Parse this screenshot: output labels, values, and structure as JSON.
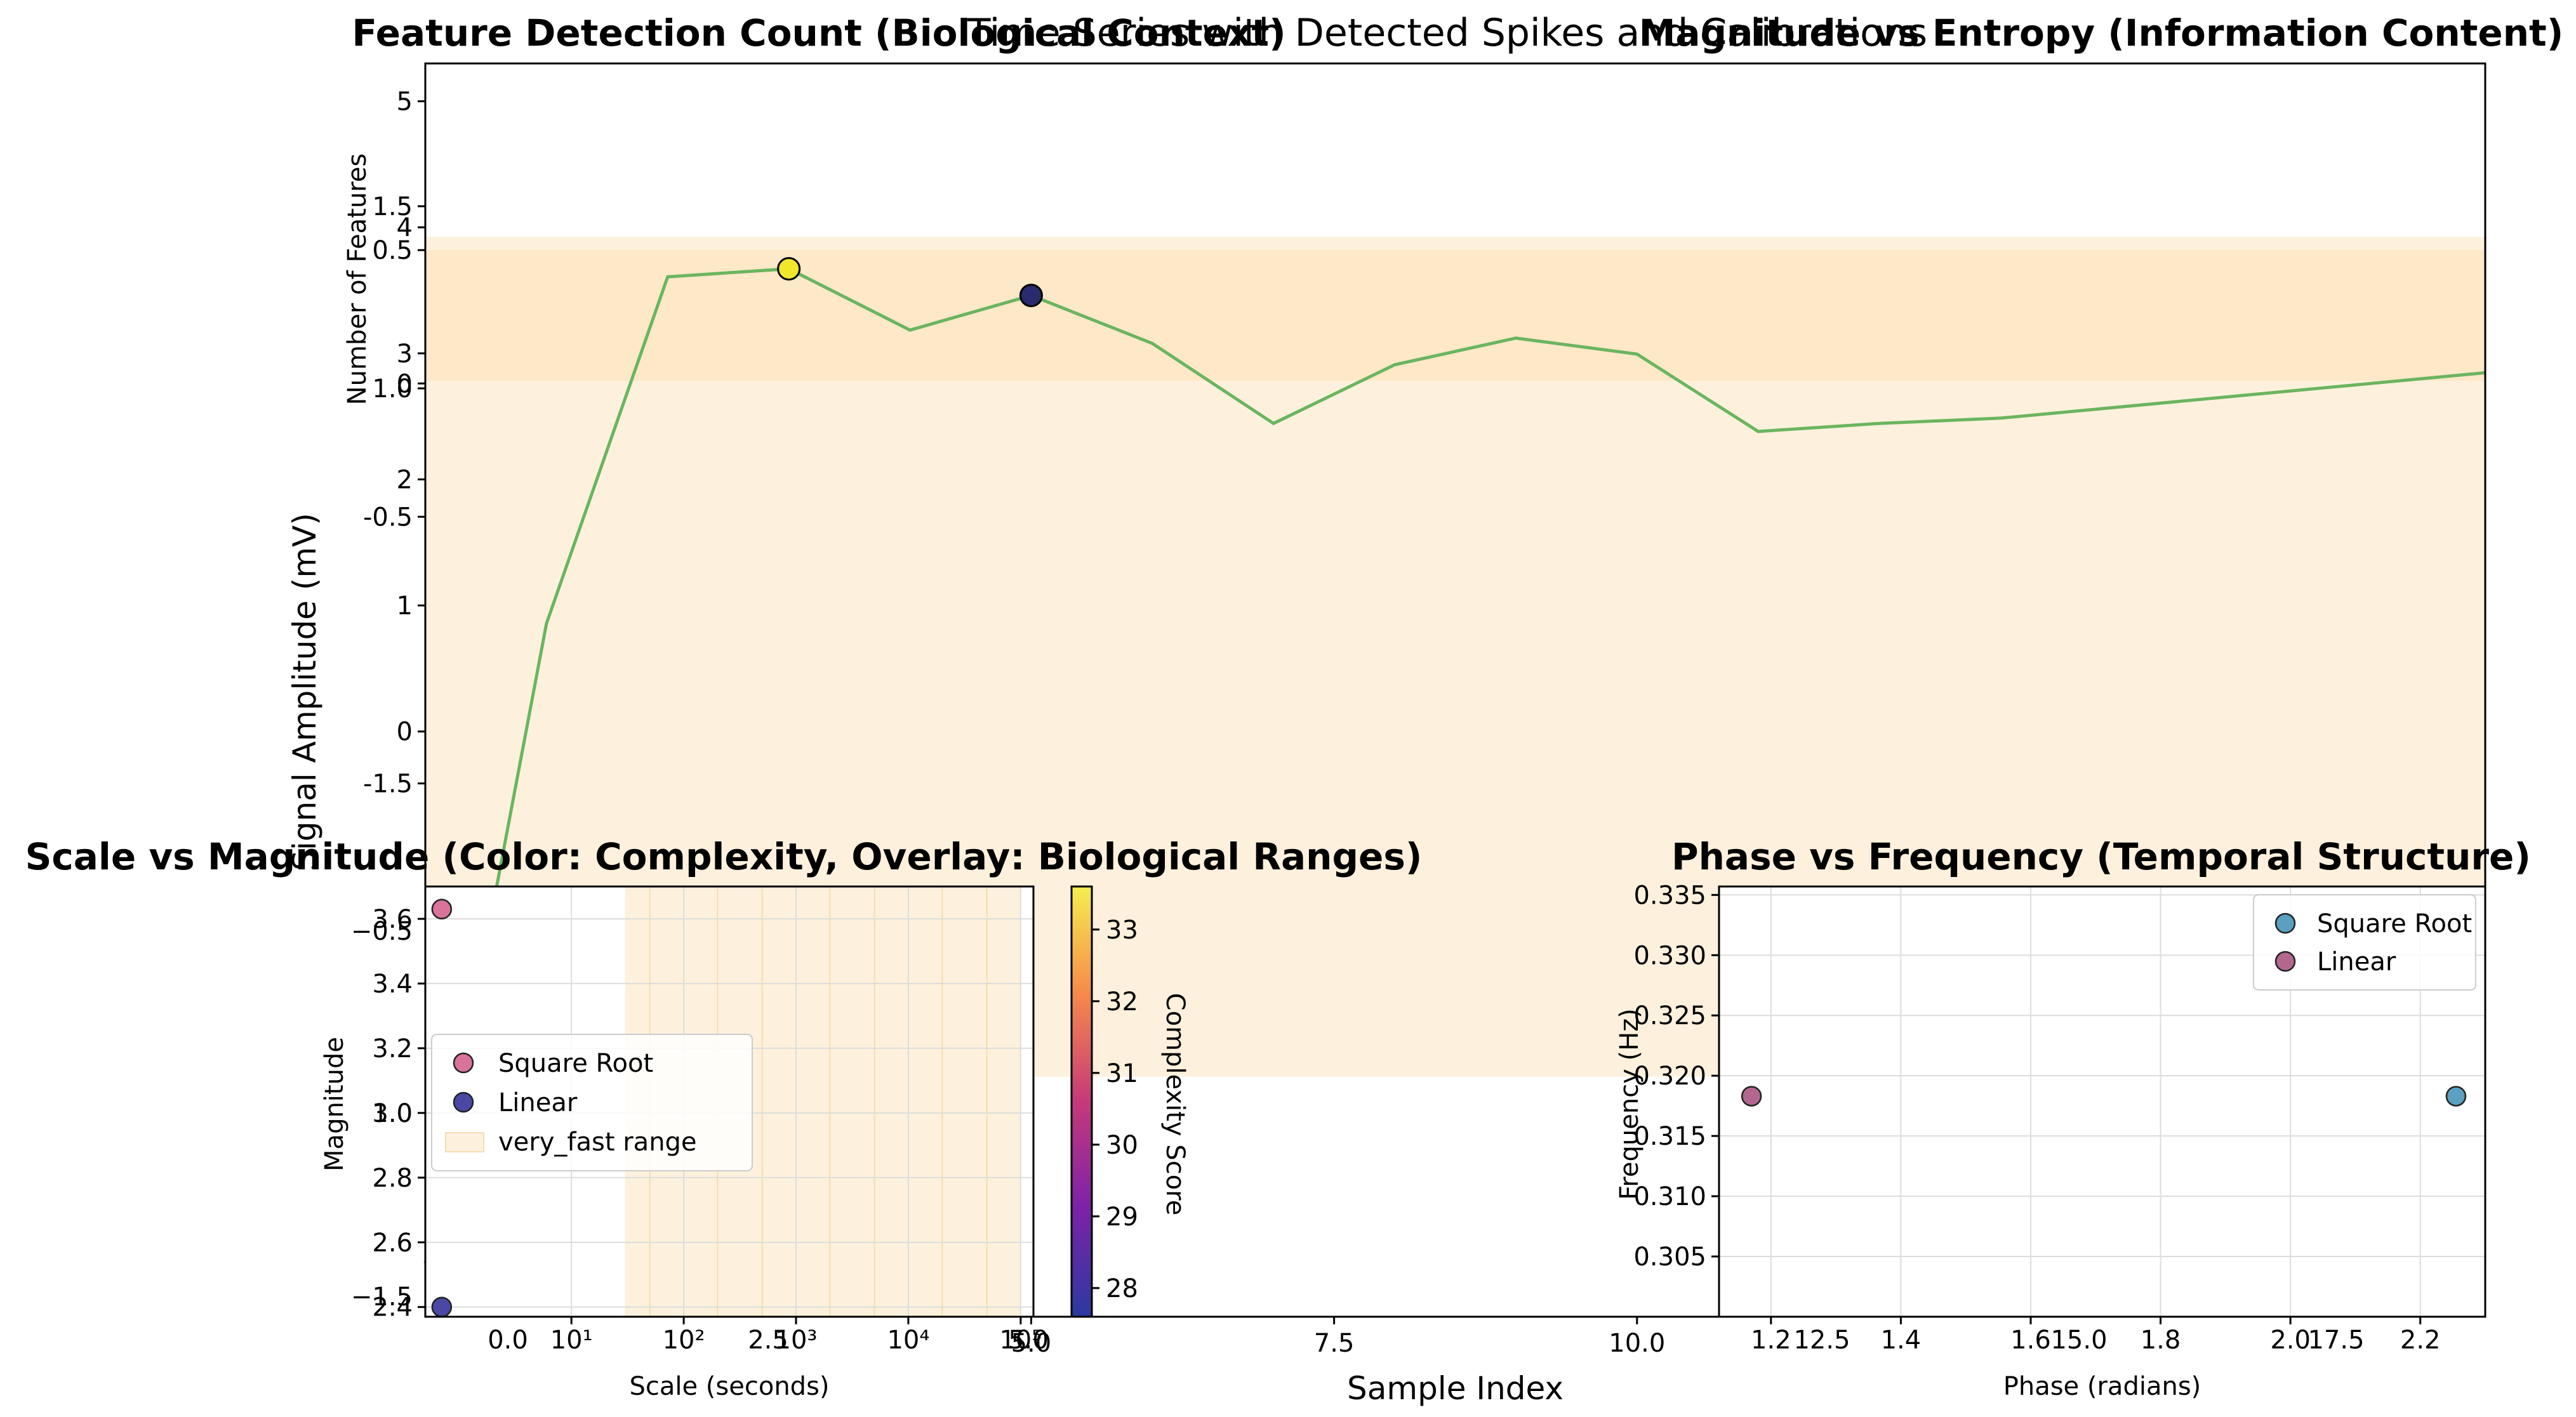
{
  "chart_data": [
    {
      "id": "main",
      "type": "line",
      "title": "Time Series with Detected Spikes and Calibrations",
      "xlabel": "Sample Index",
      "ylabel": "Signal Amplitude (mV)",
      "xlim": [
        0,
        17
      ],
      "ylim": [
        -3.5,
        1.2
      ],
      "xticks": [
        5.0,
        7.5,
        10.0
      ],
      "yticks": [
        -1.5,
        -0.5,
        0.0,
        0.5
      ],
      "grid": false,
      "bands": [
        {
          "y0": -2.6,
          "y1": 0.55,
          "color": "#fdf1dd"
        },
        {
          "y0": 0.01,
          "y1": 0.5,
          "color": "#fde8c8"
        }
      ],
      "series": [
        {
          "color": "#6ab55f",
          "x": [
            0,
            1,
            2,
            3,
            4,
            5,
            6,
            7,
            8,
            9,
            10,
            11,
            12,
            13,
            17
          ],
          "y": [
            -3.3,
            -0.9,
            0.4,
            0.43,
            0.2,
            0.33,
            0.15,
            -0.15,
            0.07,
            0.17,
            0.11,
            -0.18,
            -0.15,
            -0.13,
            0.04
          ]
        }
      ],
      "spikes": [
        {
          "x": 3,
          "y": 0.43,
          "color": "#f0e62c"
        },
        {
          "x": 5,
          "y": 0.33,
          "color": "#2a2a6e"
        }
      ]
    },
    {
      "id": "tl",
      "type": "bar",
      "title": "Feature Detection Count (Biological Context)",
      "xlabel": "",
      "ylabel": "Number of Features",
      "ylim": [
        -2,
        5.3
      ],
      "yticks": [
        "0",
        "1",
        "2",
        "3",
        "4",
        "5"
      ],
      "bars": []
    },
    {
      "id": "tr",
      "type": "scatter",
      "title": "Magnitude vs Entropy (Information Content)",
      "yticks_overlay": [
        "1.5",
        "1.0"
      ]
    },
    {
      "id": "bl",
      "type": "scatter",
      "title": "Scale vs Magnitude (Color: Complexity, Overlay: Biological Ranges)",
      "xlabel": "Scale (seconds)",
      "ylabel": "Magnitude",
      "xscale": "log",
      "xlim": [
        0.5,
        130000
      ],
      "ylim": [
        2.37,
        3.7
      ],
      "xticks": [
        "10¹",
        "10²",
        "10³",
        "10⁴",
        "10⁵"
      ],
      "xticks_overlay": [
        "0.0",
        "2.5",
        "5.0"
      ],
      "yticks": [
        "2.4",
        "2.6",
        "2.8",
        "3.0",
        "3.2",
        "3.4",
        "3.6"
      ],
      "yticks_overlay": [
        "−0.5",
        "1.0",
        "−1.5"
      ],
      "points": [
        {
          "series": "Square Root",
          "x": 0.7,
          "y": 3.63,
          "color": "#d9739a"
        },
        {
          "series": "Linear",
          "x": 0.7,
          "y": 2.4,
          "color": "#4a48a4"
        }
      ],
      "range_band": {
        "label": "very_fast range",
        "x0": 30,
        "x1": 100000,
        "color": "#fdf1dd"
      },
      "legend": {
        "position": "center-left",
        "entries": [
          "Square Root",
          "Linear",
          "very_fast range"
        ]
      },
      "grid": true
    },
    {
      "id": "br",
      "type": "scatter",
      "title": "Phase vs Frequency (Temporal Structure)",
      "xlabel": "Phase (radians)",
      "ylabel": "Frequency (Hz)",
      "xlim": [
        1.12,
        2.3
      ],
      "ylim": [
        0.3,
        0.3357
      ],
      "xticks": [
        "1.2",
        "1.4",
        "1.6",
        "1.8",
        "2.0",
        "2.2"
      ],
      "xticks_overlay": [
        "12.5",
        "15.0",
        "17.5"
      ],
      "yticks": [
        "0.305",
        "0.310",
        "0.315",
        "0.320",
        "0.325",
        "0.330",
        "0.335"
      ],
      "points": [
        {
          "series": "Linear",
          "x": 1.17,
          "y": 0.3183,
          "color": "#b3678f"
        },
        {
          "series": "Square Root",
          "x": 2.255,
          "y": 0.3183,
          "color": "#5aa0c0"
        }
      ],
      "legend": {
        "position": "top-right",
        "entries": [
          "Square Root",
          "Linear"
        ]
      },
      "grid": true
    }
  ],
  "colorbar": {
    "label": "Complexity Score",
    "min": 27.6,
    "max": 33.6,
    "ticks": [
      "28",
      "29",
      "30",
      "31",
      "32",
      "33"
    ],
    "colormap": "plasma"
  }
}
